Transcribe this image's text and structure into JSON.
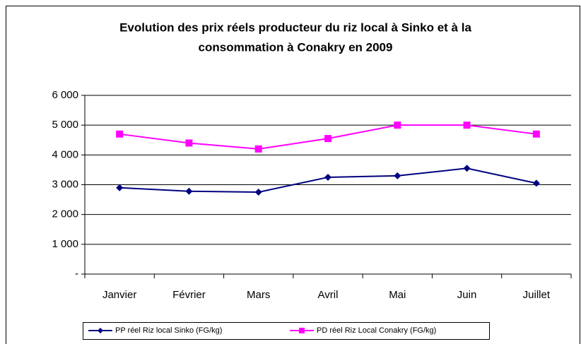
{
  "chart_data": {
    "type": "line",
    "title": [
      "Evolution des prix réels producteur du riz local à Sinko et à la",
      "consommation à Conakry en 2009"
    ],
    "categories": [
      "Janvier",
      "Février",
      "Mars",
      "Avril",
      "Mai",
      "Juin",
      "Juillet"
    ],
    "series": [
      {
        "name": "PP réel Riz local Sinko (FG/kg)",
        "color": "#000080",
        "marker": "diamond",
        "values": [
          2900,
          2780,
          2750,
          3250,
          3300,
          3550,
          3050
        ]
      },
      {
        "name": "PD réel Riz Local Conakry (FG/kg)",
        "color": "#ff00ff",
        "marker": "square",
        "values": [
          4700,
          4400,
          4200,
          4550,
          5000,
          5000,
          4700
        ]
      }
    ],
    "ylim": [
      0,
      6000
    ],
    "yticks": [
      {
        "value": 0,
        "label": "-"
      },
      {
        "value": 1000,
        "label": "1 000"
      },
      {
        "value": 2000,
        "label": "2 000"
      },
      {
        "value": 3000,
        "label": "3 000"
      },
      {
        "value": 4000,
        "label": "4 000"
      },
      {
        "value": 5000,
        "label": "5 000"
      },
      {
        "value": 6000,
        "label": "6 000"
      }
    ],
    "grid": true,
    "legend": "bottom"
  }
}
